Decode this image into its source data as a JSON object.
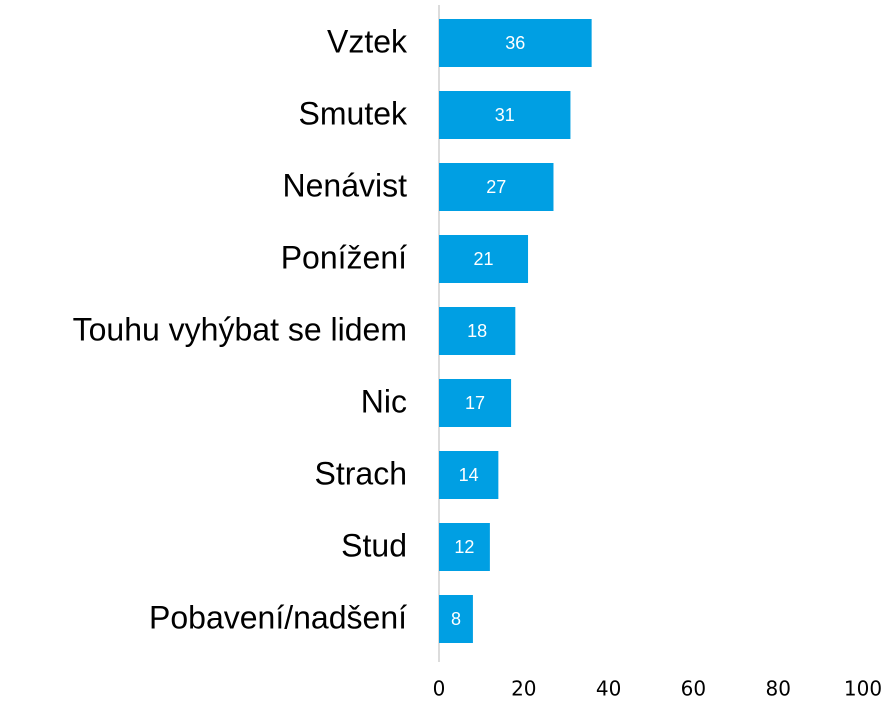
{
  "chart_data": {
    "type": "bar",
    "orientation": "horizontal",
    "categories": [
      "Vztek",
      "Smutek",
      "Nenávist",
      "Ponížení",
      "Touhu vyhýbat se lidem",
      "Nic",
      "Strach",
      "Stud",
      "Pobavení/nadšení"
    ],
    "values": [
      36,
      31,
      27,
      21,
      18,
      17,
      14,
      12,
      8
    ],
    "color": "#009fe3",
    "xlim": [
      0,
      100
    ],
    "xticks": [
      0,
      20,
      40,
      60,
      80,
      100
    ],
    "grid": false
  }
}
